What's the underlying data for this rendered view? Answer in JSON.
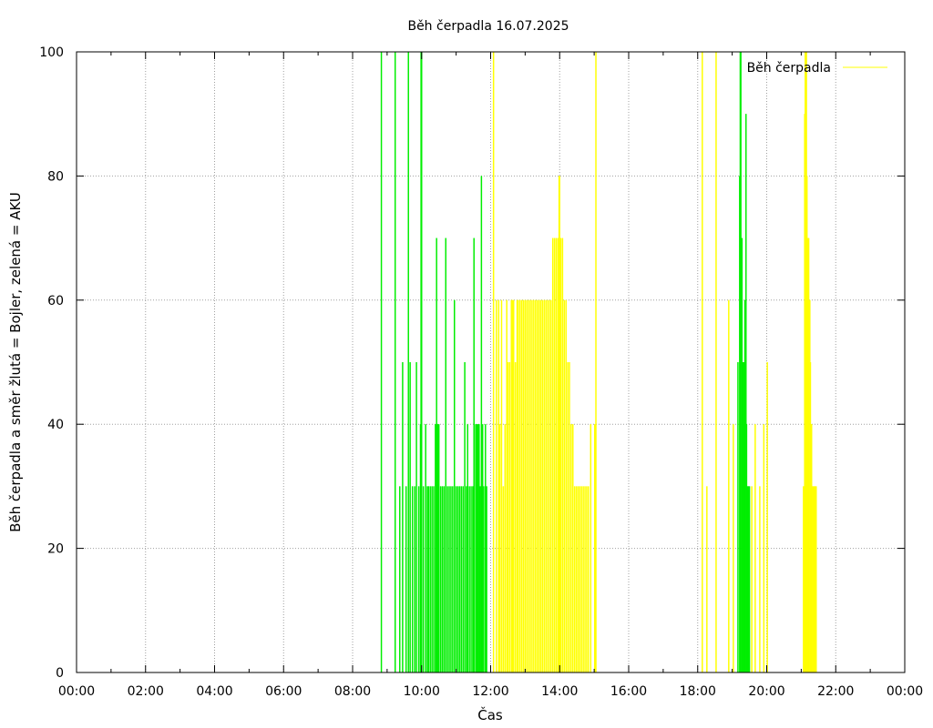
{
  "chart_data": {
    "type": "bar",
    "title": "Běh čerpadla 16.07.2025",
    "xlabel": "Čas",
    "ylabel": "Běh čerpadla a směr žlutá = Bojler, zelená = AKU",
    "legend": {
      "label": "Běh čerpadla",
      "position": "top-right",
      "line_color": "#ffff00"
    },
    "ylim": [
      0,
      100
    ],
    "yticks": [
      0,
      20,
      40,
      60,
      80,
      100
    ],
    "xlim_hours": [
      0,
      24
    ],
    "xticks": [
      "00:00",
      "02:00",
      "04:00",
      "06:00",
      "08:00",
      "10:00",
      "12:00",
      "14:00",
      "16:00",
      "18:00",
      "20:00",
      "22:00",
      "00:00"
    ],
    "grid": true,
    "colors": {
      "boiler": "#ffff00",
      "aku": "#00ee00",
      "grid": "#a0a0a0",
      "axis": "#000000"
    },
    "series": [
      {
        "name": "zelená = AKU",
        "color": "#00ee00",
        "impulses": [
          {
            "t": "08:50",
            "v": 100
          },
          {
            "t": "09:14",
            "v": 100
          },
          {
            "t": "09:22",
            "v": 30
          },
          {
            "t": "09:27",
            "v": 50
          },
          {
            "t": "09:33",
            "v": 30
          },
          {
            "t": "09:37",
            "v": 100
          },
          {
            "t": "09:40",
            "v": 50
          },
          {
            "t": "09:44",
            "v": 30
          },
          {
            "t": "09:48",
            "v": 30
          },
          {
            "t": "09:51",
            "v": 50
          },
          {
            "t": "09:55",
            "v": 30
          },
          {
            "t": "09:58",
            "v": 40
          },
          {
            "t": "09:59",
            "v": 100
          },
          {
            "t": "10:00",
            "v": 100
          },
          {
            "t": "10:03",
            "v": 30
          },
          {
            "t": "10:07",
            "v": 40
          },
          {
            "t": "10:10",
            "v": 30
          },
          {
            "t": "10:12",
            "v": 30
          },
          {
            "t": "10:15",
            "v": 30
          },
          {
            "t": "10:18",
            "v": 30
          },
          {
            "t": "10:21",
            "v": 30
          },
          {
            "t": "10:24",
            "v": 40
          },
          {
            "t": "10:26",
            "v": 70
          },
          {
            "t": "10:28",
            "v": 40
          },
          {
            "t": "10:30",
            "v": 40
          },
          {
            "t": "10:33",
            "v": 30
          },
          {
            "t": "10:36",
            "v": 30
          },
          {
            "t": "10:39",
            "v": 30
          },
          {
            "t": "10:42",
            "v": 70
          },
          {
            "t": "10:45",
            "v": 30
          },
          {
            "t": "10:48",
            "v": 30
          },
          {
            "t": "10:51",
            "v": 30
          },
          {
            "t": "10:54",
            "v": 30
          },
          {
            "t": "10:57",
            "v": 60
          },
          {
            "t": "11:00",
            "v": 30
          },
          {
            "t": "11:03",
            "v": 30
          },
          {
            "t": "11:06",
            "v": 30
          },
          {
            "t": "11:09",
            "v": 30
          },
          {
            "t": "11:12",
            "v": 30
          },
          {
            "t": "11:15",
            "v": 50
          },
          {
            "t": "11:18",
            "v": 30
          },
          {
            "t": "11:20",
            "v": 40
          },
          {
            "t": "11:23",
            "v": 30
          },
          {
            "t": "11:26",
            "v": 30
          },
          {
            "t": "11:29",
            "v": 30
          },
          {
            "t": "11:31",
            "v": 70
          },
          {
            "t": "11:34",
            "v": 40
          },
          {
            "t": "11:36",
            "v": 40
          },
          {
            "t": "11:38",
            "v": 40
          },
          {
            "t": "11:40",
            "v": 40
          },
          {
            "t": "11:42",
            "v": 30
          },
          {
            "t": "11:44",
            "v": 80
          },
          {
            "t": "11:46",
            "v": 40
          },
          {
            "t": "11:48",
            "v": 30
          },
          {
            "t": "11:51",
            "v": 40
          },
          {
            "t": "11:53",
            "v": 30
          },
          {
            "t": "19:10",
            "v": 50
          },
          {
            "t": "19:13",
            "v": 80
          },
          {
            "t": "19:14",
            "v": 100
          },
          {
            "t": "19:15",
            "v": 100
          },
          {
            "t": "19:17",
            "v": 70
          },
          {
            "t": "19:18",
            "v": 50
          },
          {
            "t": "19:20",
            "v": 50
          },
          {
            "t": "19:21",
            "v": 40
          },
          {
            "t": "19:22",
            "v": 60
          },
          {
            "t": "19:24",
            "v": 90
          },
          {
            "t": "19:25",
            "v": 40
          },
          {
            "t": "19:27",
            "v": 30
          },
          {
            "t": "19:28",
            "v": 30
          },
          {
            "t": "19:30",
            "v": 30
          }
        ]
      },
      {
        "name": "žlutá = Bojler",
        "color": "#ffff00",
        "impulses": [
          {
            "t": "12:05",
            "v": 100
          },
          {
            "t": "12:10",
            "v": 60
          },
          {
            "t": "12:14",
            "v": 60
          },
          {
            "t": "12:16",
            "v": 40
          },
          {
            "t": "12:19",
            "v": 60
          },
          {
            "t": "12:22",
            "v": 30
          },
          {
            "t": "12:25",
            "v": 40
          },
          {
            "t": "12:28",
            "v": 60
          },
          {
            "t": "12:30",
            "v": 50
          },
          {
            "t": "12:33",
            "v": 50
          },
          {
            "t": "12:36",
            "v": 60
          },
          {
            "t": "12:38",
            "v": 60
          },
          {
            "t": "12:40",
            "v": 60
          },
          {
            "t": "12:43",
            "v": 50
          },
          {
            "t": "12:46",
            "v": 60
          },
          {
            "t": "12:48",
            "v": 60
          },
          {
            "t": "12:51",
            "v": 60
          },
          {
            "t": "12:54",
            "v": 60
          },
          {
            "t": "12:57",
            "v": 60
          },
          {
            "t": "13:00",
            "v": 60
          },
          {
            "t": "13:03",
            "v": 60
          },
          {
            "t": "13:06",
            "v": 60
          },
          {
            "t": "13:09",
            "v": 60
          },
          {
            "t": "13:12",
            "v": 60
          },
          {
            "t": "13:15",
            "v": 60
          },
          {
            "t": "13:18",
            "v": 60
          },
          {
            "t": "13:21",
            "v": 60
          },
          {
            "t": "13:24",
            "v": 60
          },
          {
            "t": "13:27",
            "v": 60
          },
          {
            "t": "13:30",
            "v": 60
          },
          {
            "t": "13:33",
            "v": 60
          },
          {
            "t": "13:36",
            "v": 60
          },
          {
            "t": "13:39",
            "v": 60
          },
          {
            "t": "13:42",
            "v": 60
          },
          {
            "t": "13:45",
            "v": 60
          },
          {
            "t": "13:48",
            "v": 70
          },
          {
            "t": "13:51",
            "v": 70
          },
          {
            "t": "13:54",
            "v": 70
          },
          {
            "t": "13:57",
            "v": 70
          },
          {
            "t": "13:59",
            "v": 80
          },
          {
            "t": "14:00",
            "v": 80
          },
          {
            "t": "14:02",
            "v": 70
          },
          {
            "t": "14:05",
            "v": 70
          },
          {
            "t": "14:08",
            "v": 60
          },
          {
            "t": "14:11",
            "v": 60
          },
          {
            "t": "14:14",
            "v": 50
          },
          {
            "t": "14:17",
            "v": 50
          },
          {
            "t": "14:20",
            "v": 40
          },
          {
            "t": "14:23",
            "v": 40
          },
          {
            "t": "14:26",
            "v": 30
          },
          {
            "t": "14:29",
            "v": 30
          },
          {
            "t": "14:32",
            "v": 30
          },
          {
            "t": "14:35",
            "v": 30
          },
          {
            "t": "14:38",
            "v": 30
          },
          {
            "t": "14:41",
            "v": 30
          },
          {
            "t": "14:44",
            "v": 30
          },
          {
            "t": "14:47",
            "v": 30
          },
          {
            "t": "14:50",
            "v": 30
          },
          {
            "t": "14:54",
            "v": 40
          },
          {
            "t": "15:01",
            "v": 40
          },
          {
            "t": "15:03",
            "v": 100
          },
          {
            "t": "18:08",
            "v": 100
          },
          {
            "t": "18:16",
            "v": 30
          },
          {
            "t": "18:32",
            "v": 100
          },
          {
            "t": "18:54",
            "v": 60
          },
          {
            "t": "19:02",
            "v": 40
          },
          {
            "t": "19:34",
            "v": 30
          },
          {
            "t": "19:40",
            "v": 40
          },
          {
            "t": "19:48",
            "v": 30
          },
          {
            "t": "19:55",
            "v": 40
          },
          {
            "t": "20:01",
            "v": 50
          },
          {
            "t": "21:04",
            "v": 30
          },
          {
            "t": "21:06",
            "v": 90
          },
          {
            "t": "21:07",
            "v": 100
          },
          {
            "t": "21:08",
            "v": 80
          },
          {
            "t": "21:09",
            "v": 100
          },
          {
            "t": "21:10",
            "v": 80
          },
          {
            "t": "21:11",
            "v": 70
          },
          {
            "t": "21:12",
            "v": 60
          },
          {
            "t": "21:13",
            "v": 70
          },
          {
            "t": "21:15",
            "v": 60
          },
          {
            "t": "21:16",
            "v": 50
          },
          {
            "t": "21:17",
            "v": 40
          },
          {
            "t": "21:18",
            "v": 40
          },
          {
            "t": "21:20",
            "v": 30
          },
          {
            "t": "21:22",
            "v": 30
          },
          {
            "t": "21:24",
            "v": 30
          },
          {
            "t": "21:26",
            "v": 30
          }
        ]
      }
    ]
  }
}
